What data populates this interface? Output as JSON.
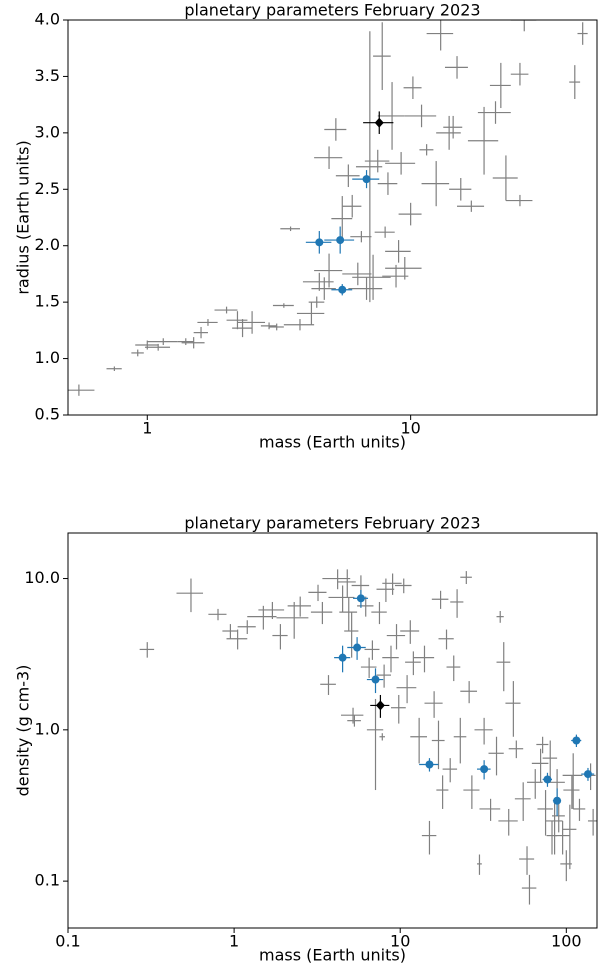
{
  "chart_data": [
    {
      "type": "scatter",
      "title": "planetary parameters February 2023",
      "x_label": "mass (Earth units)",
      "y_label": "radius (Earth units)",
      "xscale": "log",
      "yscale": "linear",
      "xlim": [
        0.5,
        51
      ],
      "ylim": [
        0.5,
        4.0
      ],
      "xticks": [
        1,
        10
      ],
      "yticks": [
        0.5,
        {
          "value": 1,
          "label": "1.0"
        },
        1.5,
        {
          "value": 2,
          "label": "2.0"
        },
        2.5,
        {
          "value": 3,
          "label": "3.0"
        },
        3.5,
        {
          "value": 4,
          "label": "4.0"
        }
      ],
      "series": [
        {
          "color": "#808080",
          "marker": "none",
          "x": [
            0.55,
            0.75,
            0.92,
            1.0,
            1.1,
            1.15,
            1.4,
            1.5,
            1.6,
            1.7,
            2.0,
            2.2,
            2.3,
            2.5,
            2.9,
            3.1,
            3.3,
            3.5,
            3.8,
            4.2,
            4.4,
            4.5,
            4.7,
            4.9,
            4.9,
            5.2,
            5.5,
            5.8,
            6.0,
            6.3,
            6.5,
            6.8,
            7.0,
            7.2,
            7.5,
            7.8,
            8.0,
            8.2,
            8.5,
            8.8,
            9.0,
            9.2,
            9.5,
            10.0,
            10.2,
            11,
            11.5,
            12.5,
            13,
            14,
            14.5,
            15,
            15.5,
            17,
            19,
            21,
            22,
            23,
            26,
            26,
            27,
            42,
            45
          ],
          "y": [
            0.72,
            0.91,
            1.05,
            1.12,
            1.1,
            1.15,
            1.15,
            1.14,
            1.23,
            1.32,
            1.43,
            1.34,
            1.27,
            1.32,
            1.29,
            1.28,
            1.47,
            2.15,
            1.3,
            1.4,
            1.5,
            1.68,
            1.62,
            1.78,
            2.78,
            3.03,
            2.24,
            2.62,
            2.35,
            1.75,
            2.08,
            1.62,
            2.7,
            1.72,
            2.75,
            3.68,
            2.12,
            2.55,
            3.15,
            1.73,
            1.95,
            2.73,
            1.8,
            2.28,
            3.4,
            3.15,
            2.85,
            2.55,
            3.88,
            3.0,
            3.05,
            3.58,
            2.5,
            2.35,
            2.93,
            3.18,
            3.42,
            2.6,
            2.4,
            3.52,
            4.0,
            3.45,
            3.88
          ],
          "xerr": [
            0.08,
            0.05,
            0.05,
            0.1,
            0.12,
            0.15,
            0.1,
            0.15,
            0.1,
            0.15,
            0.2,
            0.2,
            0.2,
            0.3,
            0.2,
            0.2,
            0.3,
            0.3,
            0.5,
            0.5,
            0.3,
            0.6,
            0.5,
            0.6,
            0.6,
            0.5,
            0.5,
            0.6,
            0.5,
            0.8,
            0.6,
            1.0,
            0.8,
            1.2,
            0.8,
            0.6,
            0.7,
            0.7,
            1.0,
            1.0,
            1.0,
            1.2,
            1.5,
            1.0,
            0.8,
            1.5,
            0.7,
            1.5,
            1.5,
            1.5,
            1.2,
            1.5,
            1.5,
            2.0,
            2.5,
            3,
            2,
            2.5,
            3,
            2,
            3,
            2,
            2
          ],
          "yerr": [
            0.05,
            0.02,
            0.03,
            0.04,
            0.03,
            0.03,
            0.03,
            0.05,
            0.05,
            0.03,
            0.03,
            0.08,
            0.08,
            0.1,
            0.03,
            0.03,
            0.02,
            0.02,
            0.05,
            0.1,
            0.05,
            0.08,
            0.1,
            0.15,
            0.1,
            0.1,
            0.2,
            0.1,
            0.1,
            0.1,
            0.05,
            0.1,
            1.2,
            0.2,
            0.1,
            0.3,
            0.05,
            0.1,
            0.3,
            0.1,
            0.1,
            0.1,
            0.1,
            0.1,
            0.1,
            0.1,
            0.05,
            0.2,
            0.15,
            0.15,
            0.1,
            0.1,
            0.1,
            0.05,
            0.3,
            0.1,
            0.2,
            0.2,
            0.05,
            0.1,
            0.1,
            0.15,
            0.1
          ]
        },
        {
          "color": "#1f77b4",
          "marker": "o",
          "x": [
            4.5,
            5.4,
            5.5,
            6.8
          ],
          "y": [
            2.03,
            2.05,
            1.61,
            2.59
          ],
          "xerr": [
            0.5,
            0.7,
            0.5,
            0.8
          ],
          "yerr": [
            0.1,
            0.12,
            0.05,
            0.08
          ]
        },
        {
          "color": "#000000",
          "marker": "D",
          "x": [
            7.6
          ],
          "y": [
            3.09
          ],
          "xerr": [
            1.0
          ],
          "yerr": [
            0.1
          ]
        }
      ]
    },
    {
      "type": "scatter",
      "title": "planetary parameters February 2023",
      "x_label": "mass (Earth units)",
      "y_label": "density (g cm-3)",
      "xscale": "log",
      "yscale": "log",
      "xlim": [
        0.1,
        153
      ],
      "ylim": [
        0.049,
        20
      ],
      "xticks": [
        0.1,
        1,
        10,
        100
      ],
      "yticks": [
        0.1,
        {
          "value": 1,
          "label": "1.0"
        },
        {
          "value": 10,
          "label": "10.0"
        }
      ],
      "series": [
        {
          "color": "#808080",
          "marker": "none",
          "x": [
            0.3,
            0.55,
            0.8,
            0.95,
            1.05,
            1.2,
            1.5,
            1.7,
            1.9,
            2.3,
            2.5,
            3.2,
            3.4,
            3.7,
            4.2,
            4.5,
            4.8,
            4.9,
            5.1,
            5.2,
            5.3,
            5.8,
            6.2,
            6.5,
            6.8,
            7.1,
            7.5,
            7.8,
            8.0,
            8.2,
            8.8,
            9.0,
            9.5,
            9.8,
            10.5,
            11,
            11.5,
            12,
            13,
            14,
            15,
            16,
            17,
            17.5,
            18,
            19,
            20,
            21,
            22,
            23,
            25,
            26,
            27,
            30,
            32,
            35,
            38,
            40,
            42,
            45,
            48,
            50,
            55,
            58,
            60,
            65,
            70,
            72,
            75,
            80,
            82,
            85,
            88,
            90,
            95,
            100,
            105,
            108,
            110,
            120,
            140,
            145
          ],
          "y": [
            3.4,
            8.0,
            5.8,
            4.5,
            4.0,
            4.8,
            5.6,
            6.2,
            4.2,
            5.5,
            6.6,
            8.1,
            6.0,
            2.0,
            10.0,
            7.5,
            9.5,
            6.0,
            4.5,
            1.25,
            1.15,
            9.0,
            6.6,
            2.6,
            3.4,
            1.0,
            6.0,
            0.9,
            2.3,
            8.5,
            3.0,
            9.3,
            4.2,
            1.4,
            9.0,
            1.9,
            4.5,
            2.8,
            0.9,
            3.0,
            0.2,
            1.5,
            0.85,
            7.3,
            0.4,
            4.0,
            0.55,
            2.6,
            7.0,
            0.9,
            10.2,
            1.8,
            0.4,
            0.13,
            1.0,
            0.3,
            0.7,
            5.6,
            2.8,
            0.25,
            1.5,
            0.75,
            0.35,
            0.14,
            0.09,
            0.45,
            0.6,
            0.8,
            0.3,
            0.65,
            0.2,
            0.25,
            0.45,
            0.27,
            0.2,
            0.13,
            0.22,
            0.4,
            0.5,
            0.3,
            0.5,
            0.25
          ],
          "xerr": [
            0.03,
            0.1,
            0.1,
            0.1,
            0.15,
            0.15,
            0.3,
            0.3,
            0.2,
            0.5,
            0.4,
            0.4,
            0.5,
            0.4,
            0.8,
            0.8,
            0.6,
            0.6,
            0.5,
            0.8,
            0.5,
            0.7,
            0.7,
            0.7,
            0.7,
            0.8,
            0.8,
            0.3,
            0.8,
            1,
            1.0,
            1.2,
            1.2,
            1,
            1.2,
            1.5,
            1.5,
            1.3,
            1.5,
            2,
            1.5,
            2,
            1.5,
            2,
            1.5,
            2,
            2,
            2,
            2,
            2,
            2,
            3,
            3,
            1,
            4,
            5,
            4,
            2,
            4,
            6,
            5,
            5,
            6,
            6,
            6,
            7,
            8,
            6,
            8,
            8,
            6,
            10,
            10,
            8,
            10,
            8,
            10,
            12,
            15,
            10,
            10,
            10
          ],
          "yerr": [
            0.4,
            2.0,
            0.5,
            0.5,
            0.6,
            0.5,
            1.0,
            0.8,
            0.8,
            1.5,
            1.0,
            1.0,
            1.0,
            0.3,
            1.5,
            1.5,
            2,
            1.5,
            1.5,
            0.15,
            0.1,
            1.5,
            1.0,
            0.4,
            0.5,
            0.6,
            1.0,
            0.05,
            0.4,
            1.5,
            0.6,
            1.5,
            0.8,
            0.3,
            1.0,
            0.4,
            0.8,
            0.5,
            0.3,
            0.6,
            0.05,
            0.3,
            0.3,
            1.0,
            0.1,
            0.6,
            0.1,
            0.5,
            1.5,
            0.3,
            1.0,
            0.3,
            0.1,
            0.02,
            0.2,
            0.05,
            0.2,
            0.5,
            1.0,
            0.05,
            0.6,
            0.1,
            0.1,
            0.03,
            0.02,
            0.1,
            0.15,
            0.1,
            0.1,
            0.2,
            0.05,
            0.1,
            0.1,
            0.06,
            0.05,
            0.03,
            0.1,
            0.1,
            0.2,
            0.05,
            0.1,
            0.05
          ]
        },
        {
          "color": "#1f77b4",
          "marker": "o",
          "x": [
            4.5,
            5.5,
            5.8,
            7.1,
            15,
            32,
            77,
            88,
            115,
            135
          ],
          "y": [
            3.0,
            3.5,
            7.4,
            2.15,
            0.59,
            0.55,
            0.47,
            0.34,
            0.85,
            0.51
          ],
          "xerr": [
            0.5,
            0.7,
            0.6,
            0.8,
            2,
            3,
            5,
            5,
            8,
            12
          ],
          "yerr": [
            0.6,
            0.6,
            1.0,
            0.4,
            0.06,
            0.08,
            0.05,
            0.07,
            0.08,
            0.05
          ]
        },
        {
          "color": "#000000",
          "marker": "D",
          "x": [
            7.6
          ],
          "y": [
            1.45
          ],
          "xerr": [
            1.0
          ],
          "yerr": [
            0.25
          ]
        }
      ]
    }
  ]
}
